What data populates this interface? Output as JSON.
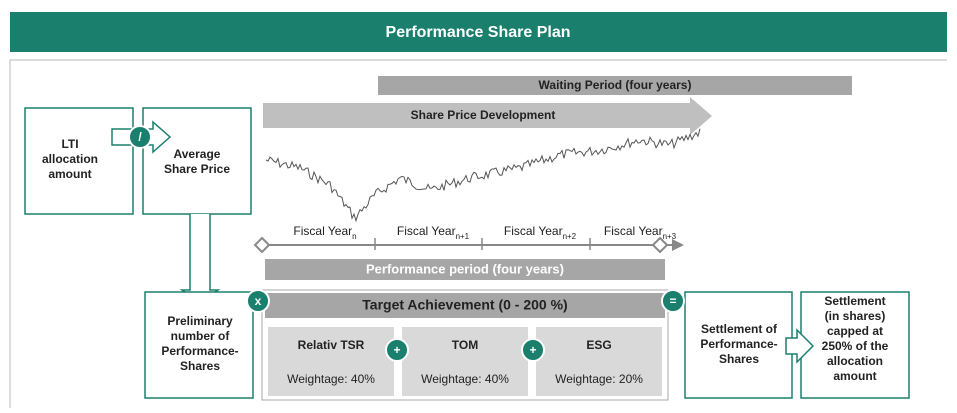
{
  "header": {
    "title": "Performance Share Plan"
  },
  "waiting_period": "Waiting Period (four years)",
  "share_price_development": "Share Price Development",
  "boxes": {
    "lti": [
      "LTI",
      "allocation",
      "amount"
    ],
    "average": [
      "Average",
      "Share Price"
    ],
    "preliminary": [
      "Preliminary",
      "number of",
      "Performance-",
      "Shares"
    ],
    "settlement_of": [
      "Settlement of",
      "Performance-",
      "Shares"
    ],
    "settlement": [
      "Settlement",
      "(in shares)",
      "capped at",
      "250% of the",
      "allocation",
      "amount"
    ]
  },
  "operators": {
    "divide": "/",
    "times": "x",
    "plus": "+",
    "equals": "="
  },
  "fiscal_years": [
    {
      "label": "Fiscal Year",
      "sub": "n"
    },
    {
      "label": "Fiscal Year",
      "sub": "n+1"
    },
    {
      "label": "Fiscal Year",
      "sub": "n+2"
    },
    {
      "label": "Fiscal Year",
      "sub": "n+3"
    }
  ],
  "performance_period": "Performance  period (four years)",
  "target": {
    "title": "Target Achievement  (0 - 200 %)",
    "items": [
      {
        "name": "Relativ TSR",
        "weight": "Weightage: 40%"
      },
      {
        "name": "TOM",
        "weight": "Weightage: 40%"
      },
      {
        "name": "ESG",
        "weight": "Weightage: 20%"
      }
    ]
  }
}
